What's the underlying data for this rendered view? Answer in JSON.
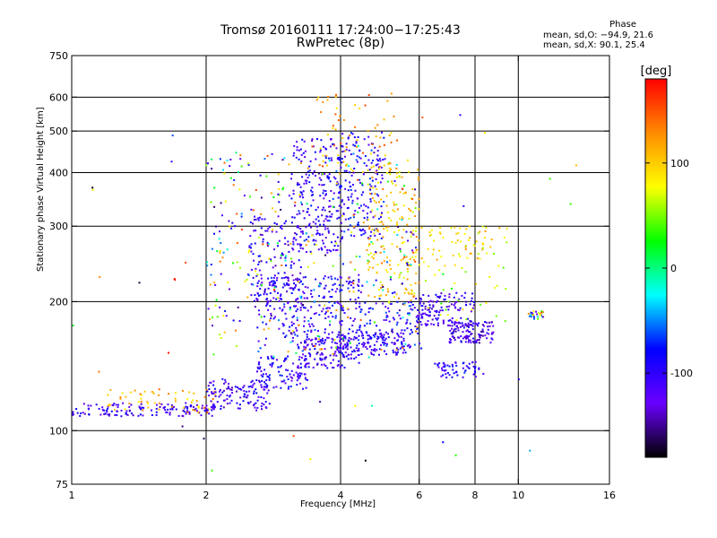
{
  "chart_data": {
    "type": "scatter",
    "title_line1": "Tromsø 20160111 17:24:00−17:25:43",
    "title_line2": "RwPretec (8p)",
    "xlabel": "Frequency [MHz]",
    "ylabel": "Stationary phase Virtual Height [km]",
    "x_scale": "log",
    "y_scale": "log",
    "xlim": [
      1,
      16
    ],
    "ylim": [
      75,
      750
    ],
    "x_ticks": [
      1,
      2,
      4,
      6,
      8,
      10,
      16
    ],
    "y_ticks": [
      75,
      100,
      200,
      300,
      400,
      500,
      600,
      750
    ],
    "x_grid": [
      2,
      4,
      6,
      8,
      10
    ],
    "y_grid": [
      100,
      200,
      300,
      400,
      500,
      600
    ],
    "grid": true,
    "stats": {
      "header": "Phase",
      "o_line": "mean, sd,O: −94.9, 21.6",
      "x_line": "mean, sd,X:  90.1, 25.4"
    },
    "colorbar": {
      "label": "[deg]",
      "range": [
        -180,
        180
      ],
      "ticks": [
        100,
        0,
        -100
      ],
      "colors": [
        "#ff0000",
        "#ff8c00",
        "#ffff00",
        "#00ff00",
        "#00ffff",
        "#0000ff",
        "#6a00ff",
        "#000000"
      ]
    },
    "clusters": [
      {
        "fx": [
          1.0,
          2.1
        ],
        "h": [
          108,
          116
        ],
        "n": 140,
        "phase": -110
      },
      {
        "fx": [
          1.2,
          2.1
        ],
        "h": [
          110,
          125
        ],
        "n": 60,
        "phase": 110
      },
      {
        "fx": [
          2.0,
          2.8
        ],
        "h": [
          112,
          132
        ],
        "n": 120,
        "phase": -110
      },
      {
        "fx": [
          2.6,
          3.4
        ],
        "h": [
          125,
          150
        ],
        "n": 100,
        "phase": -100
      },
      {
        "fx": [
          3.2,
          4.4
        ],
        "h": [
          140,
          165
        ],
        "n": 120,
        "phase": -110
      },
      {
        "fx": [
          3.9,
          5.6
        ],
        "h": [
          150,
          170
        ],
        "n": 110,
        "phase": -105
      },
      {
        "fx": [
          4.5,
          6.2
        ],
        "h": [
          155,
          200
        ],
        "n": 90,
        "phase": -95
      },
      {
        "fx": [
          2.6,
          4.5
        ],
        "h": [
          160,
          230
        ],
        "n": 260,
        "phase": -100
      },
      {
        "fx": [
          2.5,
          3.3
        ],
        "h": [
          190,
          320
        ],
        "n": 140,
        "phase": -110
      },
      {
        "fx": [
          3.1,
          4.0
        ],
        "h": [
          260,
          480
        ],
        "n": 220,
        "phase": -105
      },
      {
        "fx": [
          4.0,
          5.0
        ],
        "h": [
          280,
          500
        ],
        "n": 160,
        "phase": -95
      },
      {
        "fx": [
          4.6,
          6.0
        ],
        "h": [
          200,
          420
        ],
        "n": 180,
        "phase": 100
      },
      {
        "fx": [
          2.0,
          6.0
        ],
        "h": [
          150,
          450
        ],
        "n": 380,
        "phase": 0,
        "spread": 160
      },
      {
        "fx": [
          3.5,
          5.4
        ],
        "h": [
          400,
          620
        ],
        "n": 60,
        "phase": 120
      },
      {
        "fx": [
          5.9,
          8.0
        ],
        "h": [
          175,
          210
        ],
        "n": 130,
        "phase": -110
      },
      {
        "fx": [
          7.0,
          8.8
        ],
        "h": [
          160,
          180
        ],
        "n": 120,
        "phase": -120
      },
      {
        "fx": [
          6.5,
          8.4
        ],
        "h": [
          133,
          145
        ],
        "n": 60,
        "phase": -100
      },
      {
        "fx": [
          6.0,
          9.5
        ],
        "h": [
          250,
          300
        ],
        "n": 60,
        "phase": 90
      },
      {
        "fx": [
          6.0,
          9.5
        ],
        "h": [
          180,
          260
        ],
        "n": 40,
        "phase": 60
      },
      {
        "fx": [
          10.5,
          11.4
        ],
        "h": [
          182,
          190
        ],
        "n": 30,
        "phase": 0,
        "spread": 150
      },
      {
        "fx": [
          1.0,
          13.5
        ],
        "h": [
          80,
          600
        ],
        "n": 45,
        "phase": 0,
        "spread": 180
      }
    ]
  }
}
